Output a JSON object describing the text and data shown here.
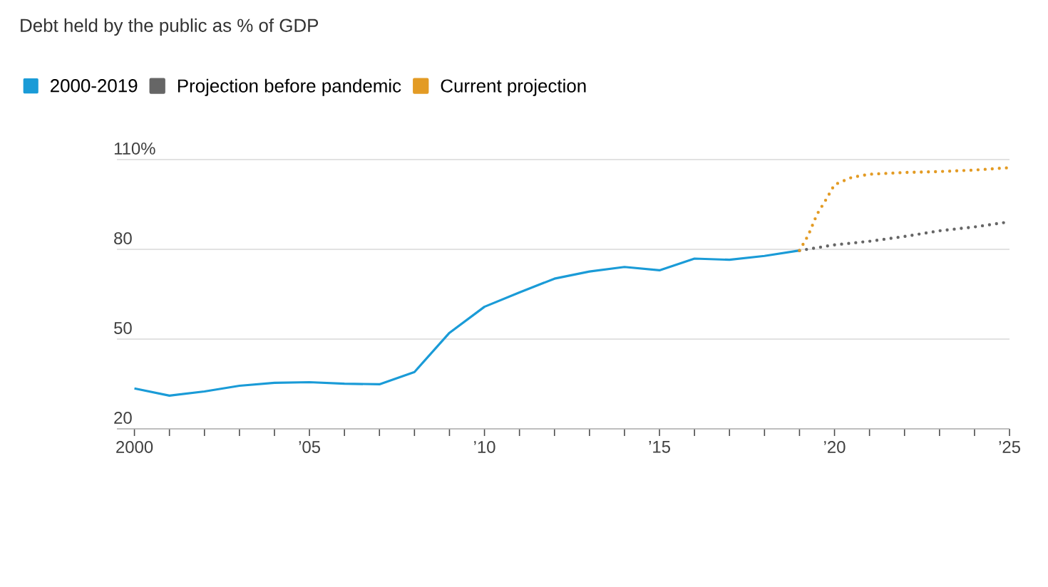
{
  "chart_data": {
    "type": "line",
    "title": "Debt held by the public as % of GDP",
    "xlim": [
      1999.5,
      2025
    ],
    "ylim": [
      20,
      110
    ],
    "xticks": [
      {
        "value": 2000,
        "label": "2000"
      },
      {
        "value": 2001,
        "label": null
      },
      {
        "value": 2002,
        "label": null
      },
      {
        "value": 2003,
        "label": null
      },
      {
        "value": 2004,
        "label": null
      },
      {
        "value": 2005,
        "label": "’05"
      },
      {
        "value": 2006,
        "label": null
      },
      {
        "value": 2007,
        "label": null
      },
      {
        "value": 2008,
        "label": null
      },
      {
        "value": 2009,
        "label": null
      },
      {
        "value": 2010,
        "label": "’10"
      },
      {
        "value": 2011,
        "label": null
      },
      {
        "value": 2012,
        "label": null
      },
      {
        "value": 2013,
        "label": null
      },
      {
        "value": 2014,
        "label": null
      },
      {
        "value": 2015,
        "label": "’15"
      },
      {
        "value": 2016,
        "label": null
      },
      {
        "value": 2017,
        "label": null
      },
      {
        "value": 2018,
        "label": null
      },
      {
        "value": 2019,
        "label": null
      },
      {
        "value": 2020,
        "label": "’20"
      },
      {
        "value": 2021,
        "label": null
      },
      {
        "value": 2022,
        "label": null
      },
      {
        "value": 2023,
        "label": null
      },
      {
        "value": 2024,
        "label": null
      },
      {
        "value": 2025,
        "label": "’25"
      }
    ],
    "yticks": [
      20,
      50,
      80,
      {
        "value": 110,
        "label": "110%"
      }
    ],
    "grid": "y",
    "legend": "top left",
    "marker": "none",
    "series": [
      {
        "name": "2000-2019",
        "color": "#1a9bd7",
        "line_style": "solid",
        "x": [
          2000,
          2001,
          2002,
          2003,
          2004,
          2005,
          2006,
          2007,
          2008,
          2009,
          2010,
          2011,
          2012,
          2013,
          2014,
          2015,
          2016,
          2017,
          2018,
          2019
        ],
        "values": [
          33.5,
          31.1,
          32.5,
          34.4,
          35.4,
          35.6,
          35.1,
          34.9,
          39.0,
          52.1,
          60.8,
          65.6,
          70.2,
          72.6,
          74.1,
          73.0,
          76.9,
          76.5,
          77.8,
          79.6
        ]
      },
      {
        "name": "Projection before pandemic",
        "color": "#666666",
        "line_style": "dotted",
        "x": [
          2019,
          2020,
          2021,
          2022,
          2023,
          2024,
          2025
        ],
        "values": [
          79.6,
          81.5,
          82.7,
          84.3,
          86.2,
          87.5,
          89.2
        ]
      },
      {
        "name": "Current projection",
        "color": "#e39b24",
        "line_style": "dotted",
        "x": [
          2019,
          2019.25,
          2019.5,
          2019.75,
          2020,
          2020.5,
          2021,
          2022,
          2023,
          2024,
          2025
        ],
        "values": [
          79.6,
          84.7,
          91.7,
          96.5,
          101.6,
          104.1,
          105.1,
          105.7,
          106.0,
          106.5,
          107.3
        ]
      }
    ]
  }
}
